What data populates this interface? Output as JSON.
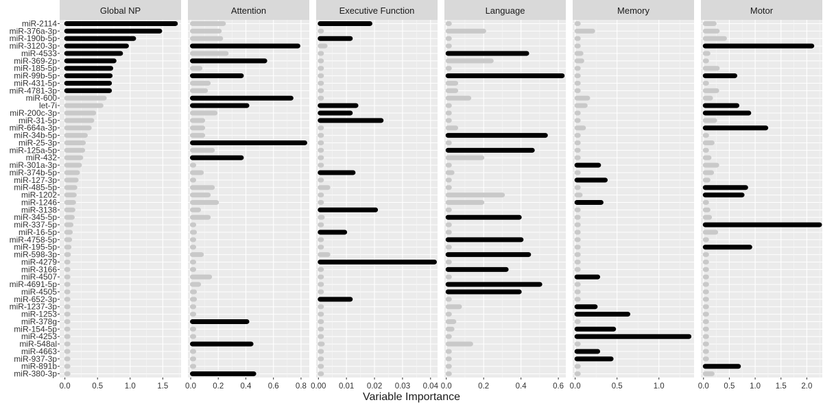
{
  "chart_data": {
    "type": "bar",
    "orientation": "horizontal",
    "xlabel": "Variable Importance",
    "ylabel": "",
    "highlight_colors": {
      "selected": "#000000",
      "other": "#c9c9c9",
      "panel_bg": "#ebebeb",
      "strip_bg": "#d9d9d9"
    },
    "categories": [
      "miR-2114",
      "miR-376a-3p",
      "miR-190b-5p",
      "miR-3120-3p",
      "miR-4533",
      "miR-369-2p",
      "miR-185-5p",
      "miR-99b-5p",
      "miR-431-5p",
      "miR-4781-3p",
      "miR-600",
      "let-7i",
      "miR-200c-3p",
      "miR-31-5p",
      "miR-664a-3p",
      "miR-34b-5p",
      "miR-25-3p",
      "miR-125a-5p",
      "miR-432",
      "miR-301a-3p",
      "miR-374b-5p",
      "miR-127-3p",
      "miR-485-5p",
      "miR-1202",
      "miR-1246",
      "miR-3138",
      "miR-345-5p",
      "miR-337-5p",
      "miR-16-5p",
      "miR-4758-5p",
      "miR-195-5p",
      "miR-598-3p",
      "miR-4279",
      "miR-3166",
      "miR-4507",
      "miR-4691-5p",
      "miR-4505",
      "miR-652-3p",
      "miR-1237-3p",
      "miR-1253",
      "miR-378g",
      "miR-154-5p",
      "miR-4253",
      "miR-548al",
      "miR-4663",
      "miR-937-3p",
      "miR-891b",
      "miR-380-3p"
    ],
    "panels": [
      {
        "name": "Global NP",
        "xlim": [
          -0.08,
          1.78
        ],
        "ticks": [
          0.0,
          0.5,
          1.0,
          1.5
        ],
        "tick_labels": [
          "0.0",
          "0.5",
          "1.0",
          "1.5"
        ],
        "values": [
          1.72,
          1.48,
          1.08,
          0.97,
          0.88,
          0.78,
          0.73,
          0.72,
          0.71,
          0.71,
          0.63,
          0.58,
          0.47,
          0.44,
          0.4,
          0.34,
          0.31,
          0.3,
          0.27,
          0.25,
          0.22,
          0.2,
          0.18,
          0.17,
          0.16,
          0.15,
          0.14,
          0.12,
          0.11,
          0.1,
          0.09,
          0.08,
          0.07,
          0.06,
          0.06,
          0.05,
          0.05,
          0.04,
          0.04,
          0.03,
          0.03,
          0.03,
          0.02,
          0.02,
          0.02,
          0.02,
          0.01,
          0.01
        ],
        "selected": [
          true,
          true,
          true,
          true,
          true,
          true,
          true,
          true,
          true,
          true,
          false,
          false,
          false,
          false,
          false,
          false,
          false,
          false,
          false,
          false,
          false,
          false,
          false,
          false,
          false,
          false,
          false,
          false,
          false,
          false,
          false,
          false,
          false,
          false,
          false,
          false,
          false,
          false,
          false,
          false,
          false,
          false,
          false,
          false,
          false,
          false,
          false,
          false
        ]
      },
      {
        "name": "Attention",
        "xlim": [
          -0.02,
          0.86
        ],
        "ticks": [
          0.0,
          0.2,
          0.4,
          0.6,
          0.8
        ],
        "tick_labels": [
          "0.0",
          "0.2",
          "0.4",
          "0.6",
          "0.8"
        ],
        "values": [
          0.25,
          0.22,
          0.23,
          0.79,
          0.27,
          0.55,
          0.08,
          0.38,
          0.14,
          0.12,
          0.74,
          0.42,
          0.19,
          0.1,
          0.1,
          0.1,
          0.84,
          0.17,
          0.38,
          0.01,
          0.09,
          0.0,
          0.17,
          0.14,
          0.2,
          0.07,
          0.14,
          0.02,
          0.04,
          0.01,
          0.02,
          0.09,
          0.01,
          0.01,
          0.15,
          0.07,
          0.04,
          0.04,
          0.01,
          0.0,
          0.42,
          0.01,
          0.0,
          0.45,
          0.01,
          0.01,
          0.01,
          0.47
        ],
        "selected": [
          false,
          false,
          false,
          true,
          false,
          true,
          false,
          true,
          false,
          false,
          true,
          true,
          false,
          false,
          false,
          false,
          true,
          false,
          true,
          false,
          false,
          false,
          false,
          false,
          false,
          false,
          false,
          false,
          false,
          false,
          false,
          false,
          false,
          false,
          false,
          false,
          false,
          false,
          false,
          false,
          true,
          false,
          false,
          true,
          false,
          false,
          false,
          true
        ]
      },
      {
        "name": "Executive Function",
        "xlim": [
          -0.0008,
          0.0425
        ],
        "ticks": [
          0.0,
          0.01,
          0.02,
          0.03,
          0.04
        ],
        "tick_labels": [
          "0.00",
          "0.01",
          "0.02",
          "0.03",
          "0.04"
        ],
        "values": [
          0.019,
          0.001,
          0.012,
          0.003,
          0.0,
          0.001,
          0.0,
          0.001,
          0.0,
          0.0,
          0.0,
          0.014,
          0.012,
          0.023,
          0.0,
          0.0,
          0.0,
          0.0,
          0.0,
          0.0,
          0.013,
          0.001,
          0.004,
          0.001,
          0.0,
          0.021,
          0.002,
          0.0,
          0.01,
          0.0,
          0.0,
          0.004,
          0.042,
          0.001,
          0.0,
          0.0,
          0.0,
          0.012,
          0.0,
          0.0,
          0.0,
          0.0,
          0.0,
          0.002,
          0.0,
          0.0,
          0.0,
          0.001
        ],
        "selected": [
          true,
          false,
          true,
          false,
          false,
          false,
          false,
          false,
          false,
          false,
          false,
          true,
          true,
          true,
          false,
          false,
          false,
          false,
          false,
          false,
          true,
          false,
          false,
          false,
          false,
          true,
          false,
          false,
          true,
          false,
          false,
          false,
          true,
          false,
          false,
          false,
          false,
          true,
          false,
          false,
          false,
          false,
          false,
          false,
          false,
          false,
          false,
          false
        ]
      },
      {
        "name": "Language",
        "xlim": [
          -0.01,
          0.64
        ],
        "ticks": [
          0.0,
          0.2,
          0.4,
          0.6
        ],
        "tick_labels": [
          "0.0",
          "0.2",
          "0.4",
          "0.6"
        ],
        "values": [
          0.01,
          0.21,
          0.01,
          0.0,
          0.44,
          0.25,
          0.0,
          0.63,
          0.06,
          0.06,
          0.13,
          0.02,
          0.0,
          0.01,
          0.06,
          0.54,
          0.02,
          0.47,
          0.2,
          0.0,
          0.04,
          0.02,
          0.01,
          0.31,
          0.2,
          0.02,
          0.4,
          0.0,
          0.0,
          0.41,
          0.01,
          0.45,
          0.0,
          0.33,
          0.0,
          0.51,
          0.4,
          0.01,
          0.08,
          0.01,
          0.05,
          0.04,
          0.01,
          0.14,
          0.0,
          0.0,
          0.0,
          0.0
        ],
        "selected": [
          false,
          false,
          false,
          false,
          true,
          false,
          false,
          true,
          false,
          false,
          false,
          false,
          false,
          false,
          false,
          true,
          false,
          true,
          false,
          false,
          false,
          false,
          false,
          false,
          false,
          false,
          true,
          false,
          false,
          true,
          false,
          true,
          false,
          true,
          false,
          true,
          true,
          false,
          false,
          false,
          false,
          false,
          false,
          false,
          false,
          false,
          false,
          false
        ]
      },
      {
        "name": "Memory",
        "xlim": [
          -0.03,
          1.42
        ],
        "ticks": [
          0.0,
          0.5,
          1.0
        ],
        "tick_labels": [
          "0.0",
          "0.5",
          "1.0"
        ],
        "values": [
          0.05,
          0.23,
          0.0,
          0.0,
          0.09,
          0.1,
          0.0,
          0.02,
          0.0,
          0.0,
          0.17,
          0.14,
          0.0,
          0.0,
          0.12,
          0.05,
          0.0,
          0.0,
          0.0,
          0.3,
          0.0,
          0.38,
          0.0,
          0.08,
          0.33,
          0.0,
          0.0,
          0.01,
          0.0,
          0.0,
          0.0,
          0.0,
          0.0,
          0.0,
          0.29,
          0.0,
          0.0,
          0.0,
          0.26,
          0.65,
          0.0,
          0.48,
          1.38,
          0.0,
          0.29,
          0.45,
          0.0,
          0.01
        ],
        "selected": [
          false,
          false,
          false,
          false,
          false,
          false,
          false,
          false,
          false,
          false,
          false,
          false,
          false,
          false,
          false,
          false,
          false,
          false,
          false,
          true,
          false,
          true,
          false,
          false,
          true,
          false,
          false,
          false,
          false,
          false,
          false,
          false,
          false,
          false,
          true,
          false,
          false,
          false,
          true,
          true,
          false,
          true,
          true,
          false,
          true,
          true,
          false,
          false
        ]
      },
      {
        "name": "Motor",
        "xlim": [
          -0.05,
          2.3
        ],
        "ticks": [
          0.0,
          0.5,
          1.0,
          1.5,
          2.0
        ],
        "tick_labels": [
          "0.0",
          "0.5",
          "1.0",
          "1.5",
          "2.0"
        ],
        "values": [
          0.24,
          0.3,
          0.44,
          2.13,
          0.12,
          0.05,
          0.3,
          0.64,
          0.05,
          0.29,
          0.17,
          0.68,
          0.91,
          0.25,
          1.24,
          0.0,
          0.2,
          0.0,
          0.14,
          0.29,
          0.19,
          0.12,
          0.85,
          0.78,
          0.03,
          0.12,
          0.15,
          2.28,
          0.27,
          0.02,
          0.93,
          0.0,
          0.0,
          0.0,
          0.0,
          0.0,
          0.0,
          0.0,
          0.0,
          0.0,
          0.0,
          0.0,
          0.0,
          0.0,
          0.0,
          0.0,
          0.71,
          0.2
        ],
        "selected": [
          false,
          false,
          false,
          true,
          false,
          false,
          false,
          true,
          false,
          false,
          false,
          true,
          true,
          false,
          true,
          false,
          false,
          false,
          false,
          false,
          false,
          false,
          true,
          true,
          false,
          false,
          false,
          true,
          false,
          false,
          true,
          false,
          false,
          false,
          false,
          false,
          false,
          false,
          false,
          false,
          false,
          false,
          false,
          false,
          false,
          false,
          true,
          false
        ]
      }
    ]
  }
}
